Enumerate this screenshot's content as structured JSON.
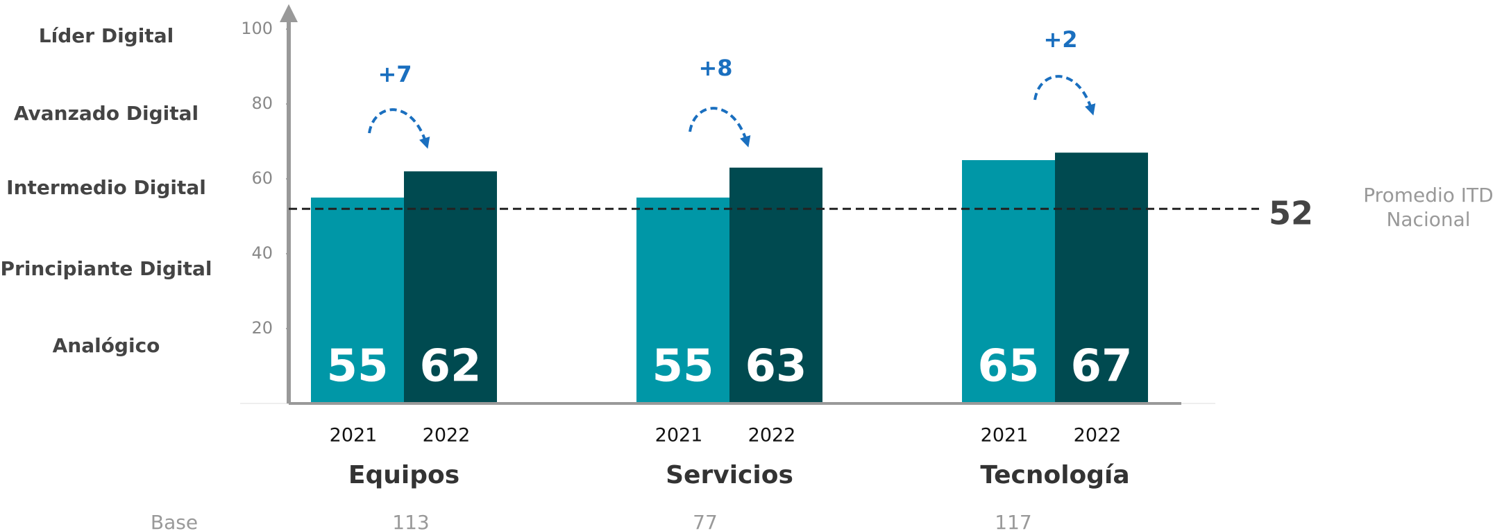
{
  "chart_data": {
    "type": "bar",
    "categories": [
      "Equipos",
      "Servicios",
      "Tecnología"
    ],
    "series": [
      {
        "name": "2021",
        "color": "#0097a7",
        "values": [
          55,
          55,
          65
        ]
      },
      {
        "name": "2022",
        "color": "#004a50",
        "values": [
          62,
          63,
          67
        ]
      }
    ],
    "ylim": [
      0,
      100
    ],
    "yticks": [
      20,
      40,
      60,
      80,
      100
    ],
    "levels": [
      "Líder Digital",
      "Avanzado Digital",
      "Intermedio Digital",
      "Principiante Digital",
      "Analógico"
    ],
    "deltas": [
      "+7",
      "+8",
      "+2"
    ],
    "reference": {
      "value": 52,
      "label": "Promedio ITD Nacional"
    },
    "base": {
      "label": "Base",
      "values": [
        113,
        77,
        117
      ]
    }
  }
}
